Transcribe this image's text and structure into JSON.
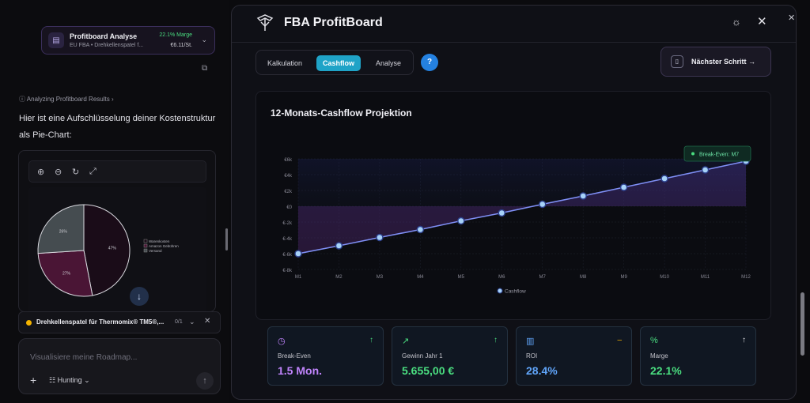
{
  "context_card": {
    "title": "Profitboard Analyse",
    "subtitle": "EU FBA • Drehkellenspatel f...",
    "margin": "22.1% Marge",
    "price": "€6.11/St."
  },
  "chat": {
    "status": "Analyzing Profitboard Results",
    "message": "Hier ist eine Aufschlüsselung deiner Kostenstruktur als Pie-Chart:"
  },
  "pie": {
    "legend": [
      "Warenkosten",
      "Amazon Gebühren",
      "Versand"
    ],
    "labels": [
      "47%",
      "27%",
      "26%"
    ],
    "values": [
      47,
      27,
      26
    ],
    "colors": [
      "#1a0c18",
      "#4a1535",
      "#454c50"
    ]
  },
  "task": {
    "title": "Drehkellenspatel für Thermomix® TM5®,...",
    "count": "0/1"
  },
  "input": {
    "placeholder": "Visualisiere meine Roadmap...",
    "mode": "Hunting"
  },
  "modal": {
    "title": "FBA ProfitBoard",
    "tabs": [
      "Kalkulation",
      "Cashflow",
      "Analyse"
    ],
    "active_tab": 1,
    "help": "?",
    "next_button": "Nächster Schritt →"
  },
  "chart_data": {
    "type": "line",
    "title": "12-Monats-Cashflow Projektion",
    "x": [
      "M1",
      "M2",
      "M3",
      "M4",
      "M5",
      "M6",
      "M7",
      "M8",
      "M9",
      "M10",
      "M11",
      "M12"
    ],
    "series": [
      {
        "name": "Cashflow",
        "values": [
          -6000,
          -5000,
          -3950,
          -2950,
          -1850,
          -850,
          250,
          1300,
          2400,
          3500,
          4600,
          5700
        ]
      }
    ],
    "y_ticks": [
      "€6k",
      "€4k",
      "€2k",
      "€0",
      "€-2k",
      "€-4k",
      "€-6k",
      "€-8k"
    ],
    "ylim": [
      -8000,
      6000
    ],
    "annotation": "Break-Even: M7",
    "legend_position": "bottom",
    "grid": true
  },
  "metrics": [
    {
      "label": "Break-Even",
      "value": "1.5 Mon.",
      "icon": "clock-icon",
      "trend": "↑",
      "color": "#c084fc",
      "trend_color": "#4ade80"
    },
    {
      "label": "Gewinn Jahr 1",
      "value": "5.655,00 €",
      "icon": "trending-up-icon",
      "trend": "↑",
      "color": "#4ade80",
      "trend_color": "#4ade80"
    },
    {
      "label": "ROI",
      "value": "28.4%",
      "icon": "bar-chart-icon",
      "trend": "–",
      "color": "#60a5fa",
      "trend_color": "#f5b400"
    },
    {
      "label": "Marge",
      "value": "22.1%",
      "icon": "percent-icon",
      "trend": "↑",
      "color": "#4ade80",
      "trend_color": "#e6e6ea"
    }
  ]
}
